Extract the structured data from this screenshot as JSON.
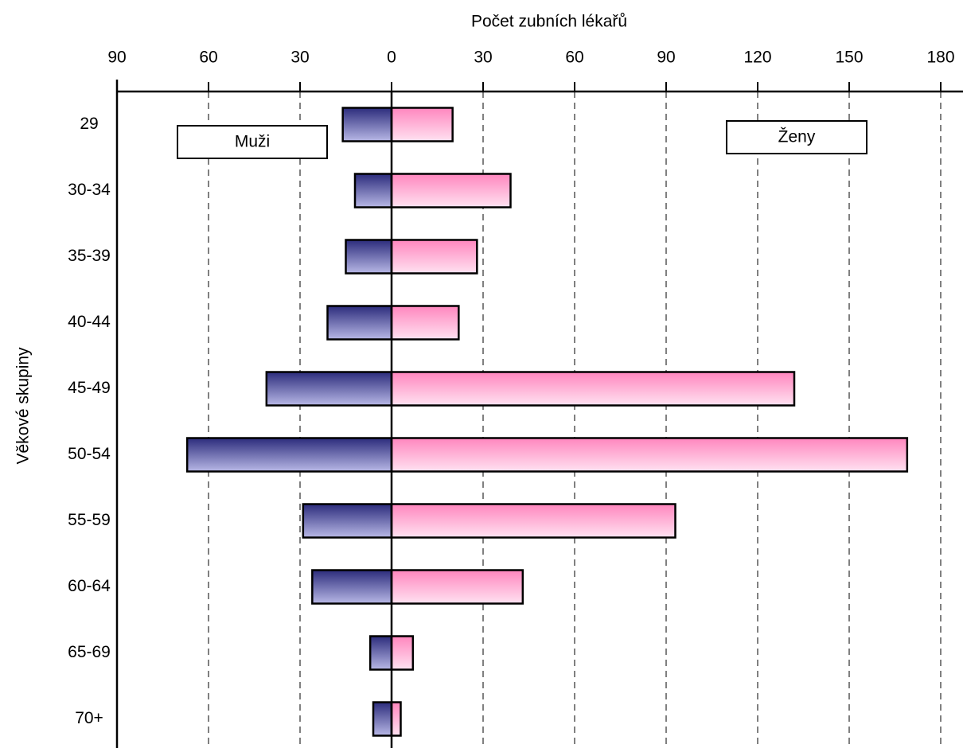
{
  "chart_data": {
    "type": "pyramid",
    "title": "Počet zubních lékařů",
    "y_label": "Věkové skupiny",
    "categories": [
      "29",
      "30-34",
      "35-39",
      "40-44",
      "45-49",
      "50-54",
      "55-59",
      "60-64",
      "65-69",
      "70+"
    ],
    "series": [
      {
        "name": "Muži",
        "gradient": [
          "#2c2c7c",
          "#b8b8e6"
        ],
        "values": [
          -16,
          -12,
          -15,
          -21,
          -41,
          -67,
          -29,
          -26,
          -7,
          -6
        ]
      },
      {
        "name": "Ženy",
        "gradient": [
          "#ff86be",
          "#ffe2f1"
        ],
        "values": [
          20,
          39,
          28,
          22,
          132,
          169,
          93,
          43,
          7,
          3
        ]
      }
    ],
    "xlim": [
      -90,
      180
    ],
    "xticks": [
      {
        "value": -90,
        "label": "90"
      },
      {
        "value": -60,
        "label": "60"
      },
      {
        "value": -30,
        "label": "30"
      },
      0,
      30,
      60,
      90,
      120,
      150,
      180
    ],
    "grid": true
  }
}
